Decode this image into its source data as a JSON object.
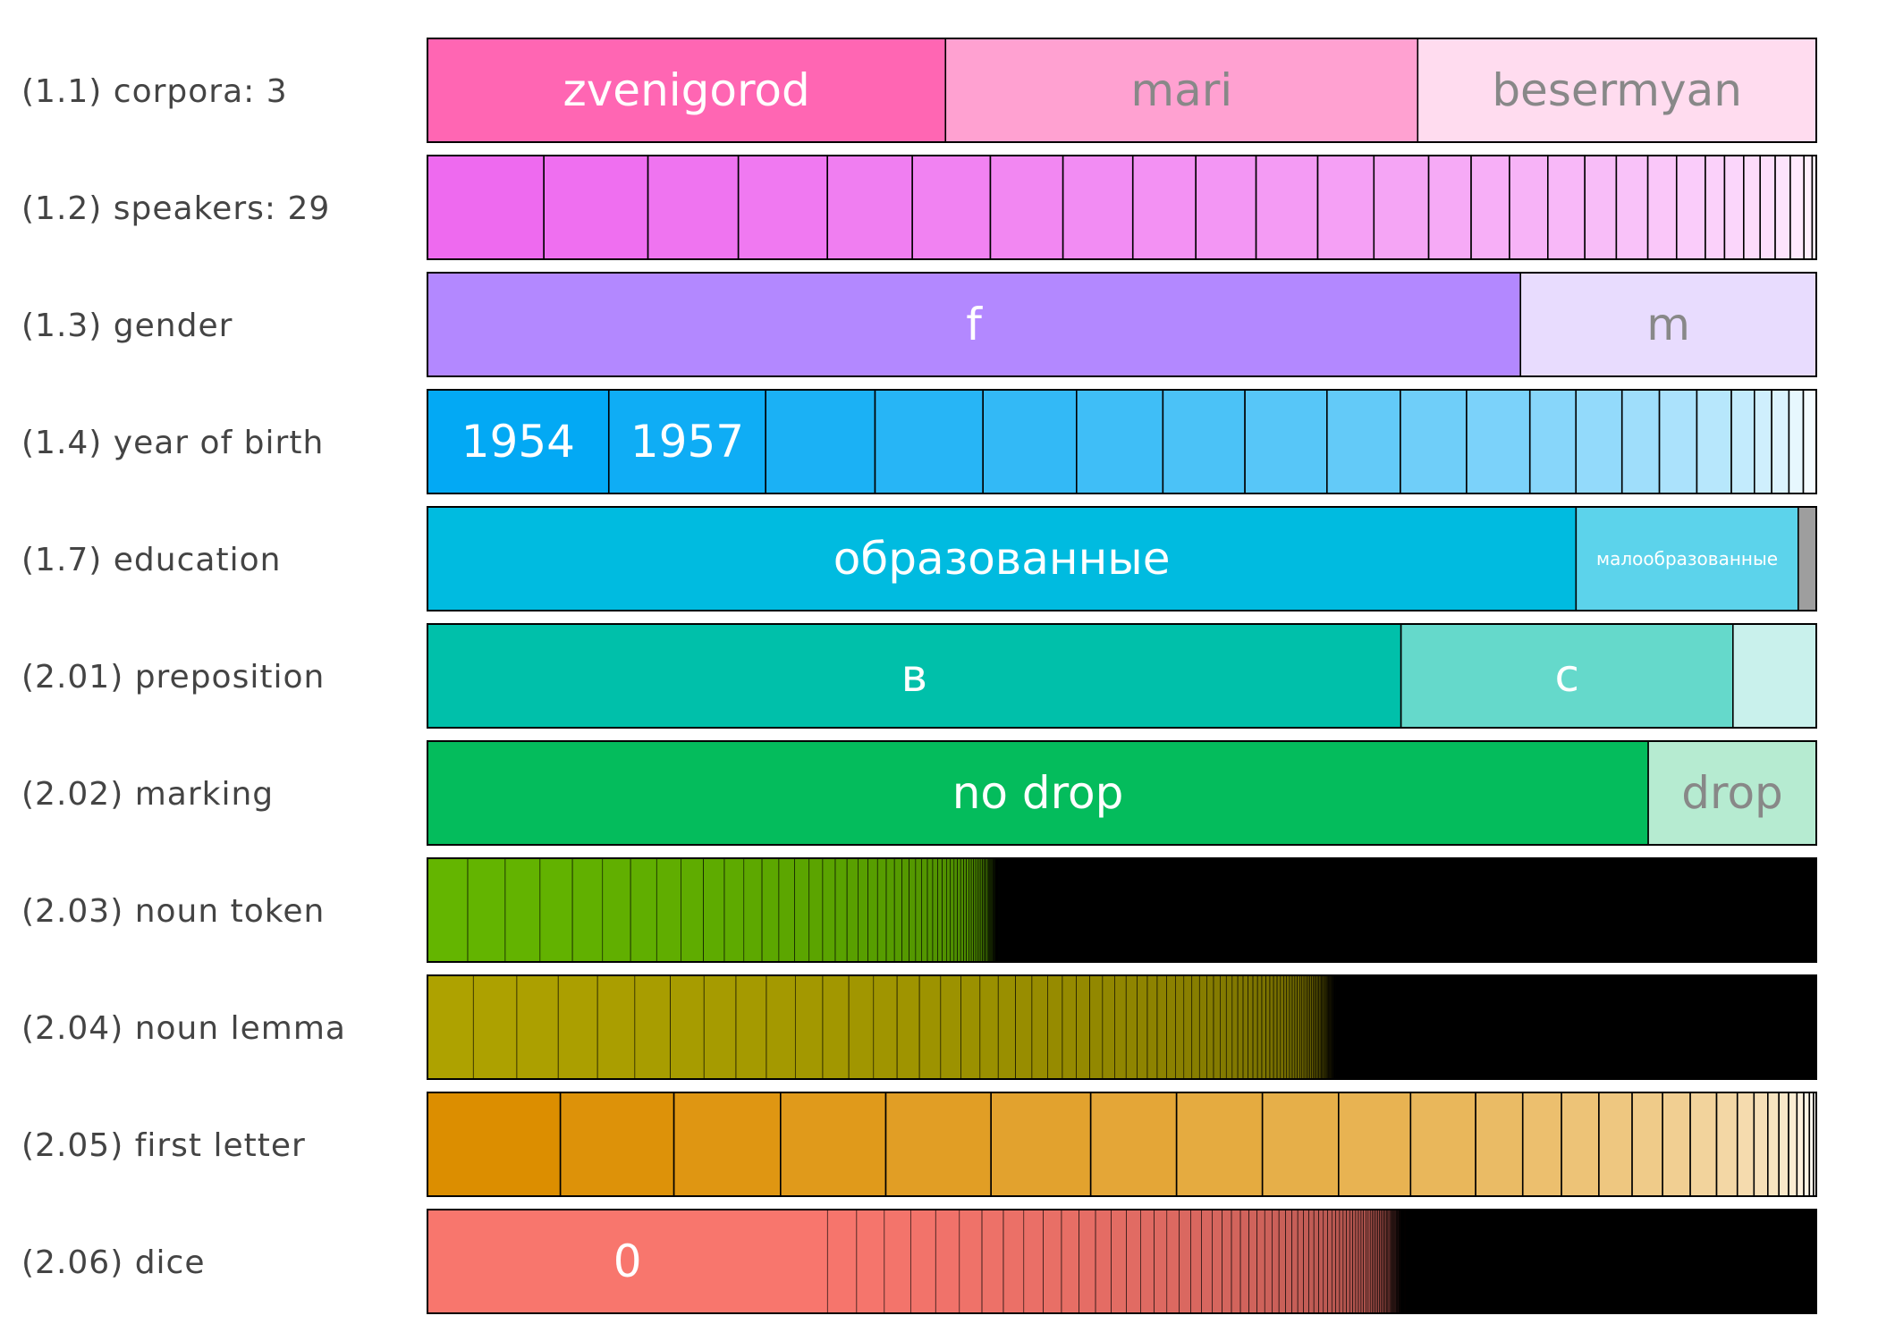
{
  "chart_data": {
    "type": "bar",
    "orientation": "horizontal",
    "layout": "stacked-100-percent",
    "legend": "none",
    "grid": false,
    "rows": [
      {
        "label": "(1.1) corpora: 3",
        "gradient": {
          "from": "#ff66b3",
          "to": "#ffdcef"
        },
        "segments": [
          {
            "label": "zvenigorod",
            "value": 37.3
          },
          {
            "label": "mari",
            "value": 34.0
          },
          {
            "label": "besermyan",
            "value": 28.7
          }
        ]
      },
      {
        "label": "(1.2) speakers: 29",
        "gradient": {
          "from": "#ee6aef",
          "to": "#fff3fe"
        },
        "segments": [
          {
            "value": 8.5
          },
          {
            "value": 7.6
          },
          {
            "value": 6.6
          },
          {
            "value": 6.5
          },
          {
            "value": 6.2
          },
          {
            "value": 5.7
          },
          {
            "value": 5.3
          },
          {
            "value": 5.1
          },
          {
            "value": 4.6
          },
          {
            "value": 4.4
          },
          {
            "value": 4.5
          },
          {
            "value": 4.1
          },
          {
            "value": 4.0
          },
          {
            "value": 3.1
          },
          {
            "value": 2.8
          },
          {
            "value": 2.8
          },
          {
            "value": 2.7
          },
          {
            "value": 2.3
          },
          {
            "value": 2.3
          },
          {
            "value": 2.1
          },
          {
            "value": 2.1
          },
          {
            "value": 1.4
          },
          {
            "value": 1.4
          },
          {
            "value": 1.2
          },
          {
            "value": 1.1
          },
          {
            "value": 1.1
          },
          {
            "value": 1.0
          },
          {
            "value": 0.6
          },
          {
            "value": 0.3
          }
        ]
      },
      {
        "label": "(1.3) gender",
        "gradient": {
          "from": "#b388ff",
          "to": "#e8dcfe"
        },
        "segments": [
          {
            "label": "f",
            "value": 78.7
          },
          {
            "label": "m",
            "value": 21.3
          }
        ]
      },
      {
        "label": "(1.4) year of birth",
        "gradient": {
          "from": "#03a9f4",
          "to": "#f3fbff"
        },
        "segments": [
          {
            "label": "1954",
            "value": 12.6
          },
          {
            "label": "1957",
            "value": 10.9
          },
          {
            "value": 7.6
          },
          {
            "value": 7.5
          },
          {
            "value": 6.5
          },
          {
            "value": 6.0
          },
          {
            "value": 5.7
          },
          {
            "value": 5.7
          },
          {
            "value": 5.1
          },
          {
            "value": 4.6
          },
          {
            "value": 4.4
          },
          {
            "value": 3.2
          },
          {
            "value": 3.2
          },
          {
            "value": 2.6
          },
          {
            "value": 2.6
          },
          {
            "value": 2.4
          },
          {
            "value": 1.6
          },
          {
            "value": 1.2
          },
          {
            "value": 1.2
          },
          {
            "value": 1.0
          },
          {
            "value": 0.9
          }
        ]
      },
      {
        "label": "(1.7) education",
        "gradient": {
          "from": "#00bbe0",
          "to": "#b8ebf5"
        },
        "segments": [
          {
            "label": "образованные",
            "value": 82.7
          },
          {
            "label": "малообразованные",
            "value": 16.0
          },
          {
            "value": 1.3,
            "color": "#9e9e9e"
          }
        ]
      },
      {
        "label": "(2.01) preposition",
        "gradient": {
          "from": "#00c0aa",
          "to": "#c9f1ec"
        },
        "segments": [
          {
            "label": "в",
            "value": 70.1
          },
          {
            "label": "с",
            "value": 23.9
          },
          {
            "value": 6.0
          }
        ]
      },
      {
        "label": "(2.02) marking",
        "gradient": {
          "from": "#04bc5c",
          "to": "#b6ebd1"
        },
        "segments": [
          {
            "label": "no drop",
            "value": 87.9
          },
          {
            "label": "drop",
            "value": 12.1
          }
        ]
      },
      {
        "label": "(2.03) noun token",
        "gradient": {
          "from": "#64b500",
          "to": "#000000"
        },
        "distribution": {
          "count": 300,
          "largest_share": 2.9,
          "decay": 0.93,
          "tail_floor": 0.003
        }
      },
      {
        "label": "(2.04) noun lemma",
        "gradient": {
          "from": "#aea200",
          "to": "#000000"
        },
        "distribution": {
          "count": 300,
          "largest_share": 3.3,
          "decay": 0.95,
          "tail_floor": 0.003
        }
      },
      {
        "label": "(2.05) first letter",
        "gradient": {
          "from": "#dc8e00",
          "to": "#fffcf7"
        },
        "segments": [
          {
            "value": 9.6
          },
          {
            "value": 8.2
          },
          {
            "value": 7.7
          },
          {
            "value": 7.6
          },
          {
            "value": 7.6
          },
          {
            "value": 7.2
          },
          {
            "value": 6.2
          },
          {
            "value": 6.2
          },
          {
            "value": 5.5
          },
          {
            "value": 5.2
          },
          {
            "value": 4.7
          },
          {
            "value": 3.4
          },
          {
            "value": 2.8
          },
          {
            "value": 2.7
          },
          {
            "value": 2.4
          },
          {
            "value": 2.2
          },
          {
            "value": 2.0
          },
          {
            "value": 1.9
          },
          {
            "value": 1.5
          },
          {
            "value": 1.2
          },
          {
            "value": 1.0
          },
          {
            "value": 0.8
          },
          {
            "value": 0.7
          },
          {
            "value": 0.6
          },
          {
            "value": 0.5
          },
          {
            "value": 0.4
          },
          {
            "value": 0.3
          },
          {
            "value": 0.2
          }
        ]
      },
      {
        "label": "(2.06) dice",
        "gradient": {
          "from": "#f8766d",
          "to": "#000000"
        },
        "segments": [
          {
            "label": "0",
            "value": 28.8
          }
        ],
        "distribution": {
          "count": 300,
          "largest_share": 2.1,
          "decay": 0.95,
          "tail_floor": 0.003
        }
      }
    ]
  }
}
